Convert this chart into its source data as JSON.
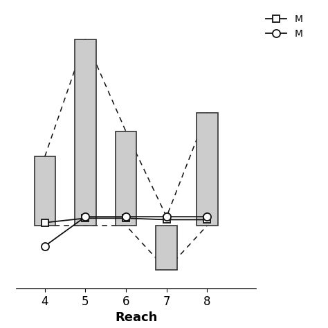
{
  "reaches": [
    4,
    5,
    6,
    7,
    8
  ],
  "bar_bottoms": [
    0.08,
    0.08,
    0.08,
    -0.22,
    0.08
  ],
  "bar_tops": [
    0.55,
    1.35,
    0.72,
    0.08,
    0.85
  ],
  "bar_color": "#cccccc",
  "bar_edge_color": "#333333",
  "line1_y": [
    0.1,
    0.13,
    0.13,
    0.12,
    0.12
  ],
  "line1_label": "M",
  "line1_marker": "s",
  "line1_color": "#111111",
  "line1_style": "-",
  "line2_y": [
    -0.06,
    0.14,
    0.14,
    0.14,
    0.14
  ],
  "line2_label": "M",
  "line2_marker": "o",
  "line2_color": "#111111",
  "line2_style": "--",
  "dashed_upper": [
    0.55,
    1.35,
    0.72,
    0.14,
    0.85
  ],
  "dashed_lower": [
    0.08,
    0.08,
    0.08,
    -0.22,
    0.08
  ],
  "xlabel": "Reach",
  "ylabel": "",
  "xlim": [
    3.3,
    9.2
  ],
  "ylim": [
    -0.35,
    1.55
  ],
  "bar_width": 0.52,
  "background_color": "#ffffff",
  "legend_labels": [
    "M",
    "M"
  ],
  "legend_markers": [
    "s",
    "o"
  ],
  "legend_linestyles": [
    "-",
    "--"
  ]
}
